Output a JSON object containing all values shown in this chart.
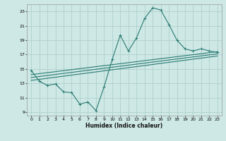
{
  "xlabel": "Humidex (Indice chaleur)",
  "ylabel": "",
  "bg_color": "#cde8e5",
  "grid_color": "#b0d0cc",
  "line_color": "#2a7a72",
  "xlim": [
    -0.5,
    23.5
  ],
  "ylim": [
    8.5,
    24.0
  ],
  "xticks": [
    0,
    1,
    2,
    3,
    4,
    5,
    6,
    7,
    8,
    9,
    10,
    11,
    12,
    13,
    14,
    15,
    16,
    17,
    18,
    19,
    20,
    21,
    22,
    23
  ],
  "yticks": [
    9,
    11,
    13,
    15,
    17,
    19,
    21,
    23
  ],
  "main_x": [
    0,
    1,
    2,
    3,
    4,
    5,
    6,
    7,
    8,
    9,
    10,
    11,
    12,
    13,
    14,
    15,
    16,
    17,
    18,
    19,
    20,
    21,
    22,
    23
  ],
  "main_y": [
    14.8,
    13.3,
    12.7,
    12.9,
    11.8,
    11.7,
    10.1,
    10.4,
    9.2,
    12.5,
    16.3,
    19.7,
    17.5,
    19.3,
    22.0,
    23.5,
    23.2,
    21.2,
    19.0,
    17.8,
    17.5,
    17.8,
    17.5,
    17.3
  ],
  "line2_x": [
    0,
    23
  ],
  "line2_y": [
    14.2,
    17.4
  ],
  "line3_x": [
    0,
    23
  ],
  "line3_y": [
    13.8,
    17.1
  ],
  "line4_x": [
    0,
    23
  ],
  "line4_y": [
    13.4,
    16.8
  ]
}
